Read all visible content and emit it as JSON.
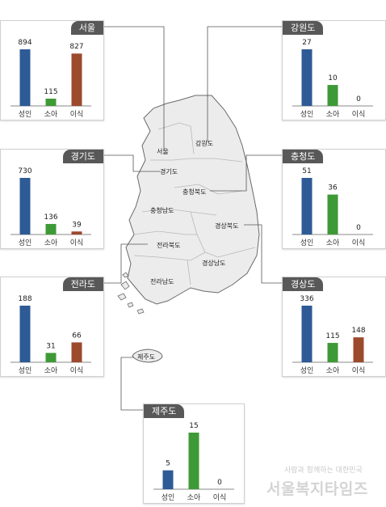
{
  "categories": [
    "성인",
    "소아",
    "이식"
  ],
  "colors": [
    "#2e5a96",
    "#3e9a36",
    "#9c4a2e"
  ],
  "chart_data": [
    {
      "type": "bar",
      "region": "서울",
      "categories": [
        "성인",
        "소아",
        "이식"
      ],
      "values": [
        894,
        115,
        827
      ],
      "ylim": [
        0,
        894
      ]
    },
    {
      "type": "bar",
      "region": "강원도",
      "categories": [
        "성인",
        "소아",
        "이식"
      ],
      "values": [
        27,
        10,
        0
      ],
      "ylim": [
        0,
        27
      ]
    },
    {
      "type": "bar",
      "region": "경기도",
      "categories": [
        "성인",
        "소아",
        "이식"
      ],
      "values": [
        730,
        136,
        39
      ],
      "ylim": [
        0,
        730
      ]
    },
    {
      "type": "bar",
      "region": "충청도",
      "categories": [
        "성인",
        "소아",
        "이식"
      ],
      "values": [
        51,
        36,
        0
      ],
      "ylim": [
        0,
        51
      ]
    },
    {
      "type": "bar",
      "region": "전라도",
      "categories": [
        "성인",
        "소아",
        "이식"
      ],
      "values": [
        188,
        31,
        66
      ],
      "ylim": [
        0,
        188
      ]
    },
    {
      "type": "bar",
      "region": "경상도",
      "categories": [
        "성인",
        "소아",
        "이식"
      ],
      "values": [
        336,
        115,
        148
      ],
      "ylim": [
        0,
        336
      ]
    },
    {
      "type": "bar",
      "region": "제주도",
      "categories": [
        "성인",
        "소아",
        "이식"
      ],
      "values": [
        5,
        15,
        0
      ],
      "ylim": [
        0,
        15
      ]
    }
  ],
  "map_labels": [
    "서울",
    "강원도",
    "경기도",
    "충청북도",
    "충청남도",
    "경상북도",
    "전라북도",
    "경상남도",
    "전라남도",
    "제주도"
  ],
  "watermark": {
    "sub": "사람과 함께하는 대한민국",
    "main": "서울복지타임즈"
  }
}
